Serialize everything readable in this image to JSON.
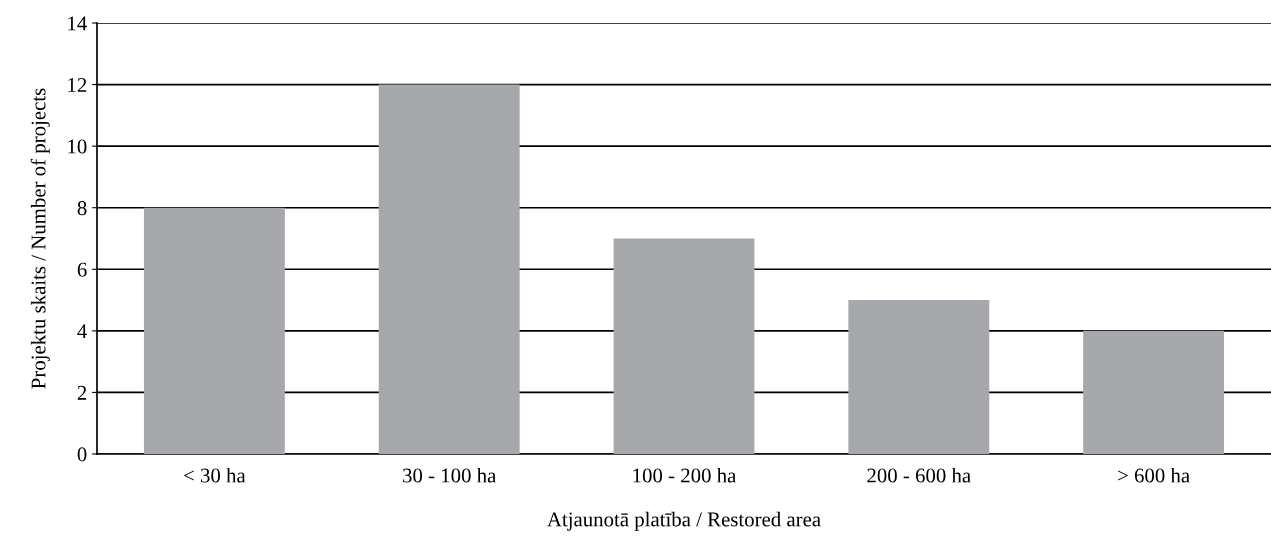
{
  "chart_data": {
    "type": "bar",
    "xlabel": "Atjaunotā platība / Restored area",
    "ylabel": "Projektu skaits / Number of projects",
    "categories": [
      "< 30 ha",
      "30 - 100 ha",
      "100 - 200 ha",
      "200 - 600 ha",
      "> 600 ha"
    ],
    "values": [
      8,
      12,
      7,
      5,
      4
    ],
    "color": "#a7a8ab",
    "ylim": [
      0,
      14
    ],
    "yticks": [
      0,
      2,
      4,
      6,
      8,
      10,
      12,
      14
    ],
    "grid": "y"
  }
}
